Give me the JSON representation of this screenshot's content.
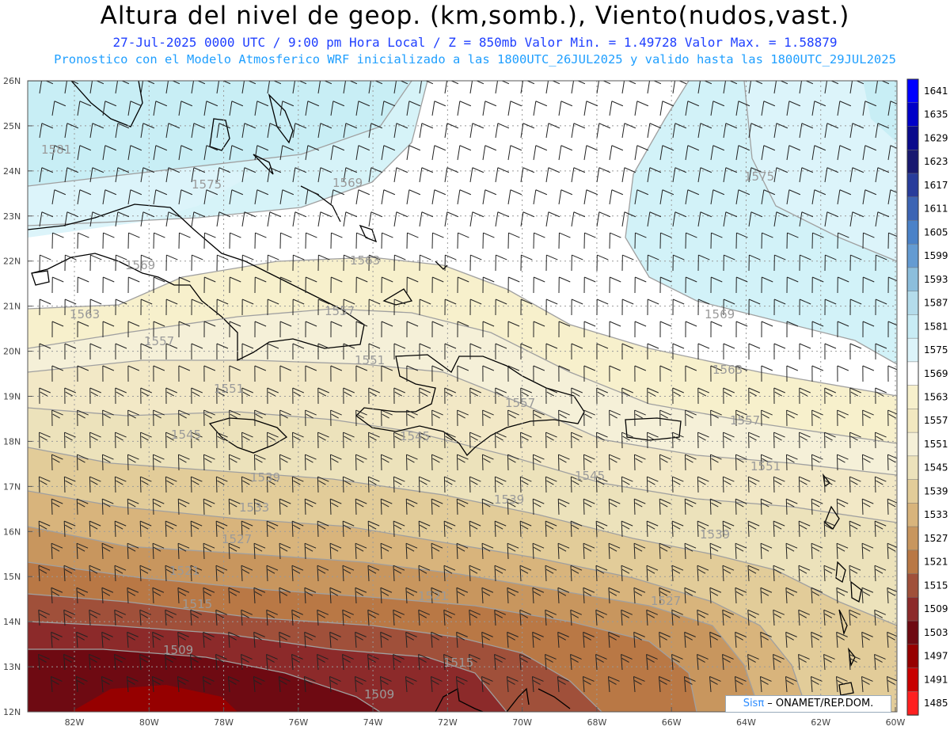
{
  "header": {
    "title": "Altura del nivel de geop. (km,somb.), Viento(nudos,vast.)",
    "line1": "27-Jul-2025   0000 UTC / 9:00 pm Hora Local / Z = 850mb    Valor Min. = 1.49728  Valor Max. = 1.58879",
    "line2": "Pronostico con el Modelo Atmosferico WRF inicializado a las 1800UTC_26JUL2025 y valido hasta las  1800UTC_29JUL2025"
  },
  "axes": {
    "lat_labels": [
      "26N",
      "25N",
      "24N",
      "23N",
      "22N",
      "21N",
      "20N",
      "19N",
      "18N",
      "17N",
      "16N",
      "15N",
      "14N",
      "13N",
      "12N"
    ],
    "lon_labels": [
      "82W",
      "80W",
      "78W",
      "76W",
      "74W",
      "72W",
      "70W",
      "68W",
      "66W",
      "64W",
      "62W",
      "60W"
    ]
  },
  "colorbar": {
    "labels": [
      "1641",
      "1635",
      "1629",
      "1623",
      "1617",
      "1611",
      "1605",
      "1599",
      "1593",
      "1587",
      "1581",
      "1575",
      "1569",
      "1563",
      "1557",
      "1551",
      "1545",
      "1539",
      "1533",
      "1527",
      "1521",
      "1515",
      "1509",
      "1503",
      "1497",
      "1491",
      "1485"
    ],
    "colors": [
      "#0000ff",
      "#0000c8",
      "#0a0a8c",
      "#191970",
      "#283c9b",
      "#3c64b4",
      "#4b82c8",
      "#649bd2",
      "#8cbedc",
      "#b4dceb",
      "#c8ecf5",
      "#dcf4fa",
      "#ffffff",
      "#f7f0cc",
      "#f2e8c0",
      "#f5f0d8",
      "#ece2bb",
      "#e2cc99",
      "#d8b47c",
      "#c8965e",
      "#b97845",
      "#a0503a",
      "#8c2a2a",
      "#6e0a12",
      "#960000",
      "#c80000",
      "#ff2020"
    ],
    "top_color": "#0000ff",
    "bottom_color": "#ff2020"
  },
  "contour_labels": [
    "1581",
    "1575",
    "1569",
    "1563",
    "1557",
    "1551",
    "1545",
    "1539",
    "1533",
    "1527",
    "1521",
    "1515",
    "1509"
  ],
  "credit": {
    "sis": "Sisπ",
    "org": " – ONAMET/REP.DOM."
  }
}
